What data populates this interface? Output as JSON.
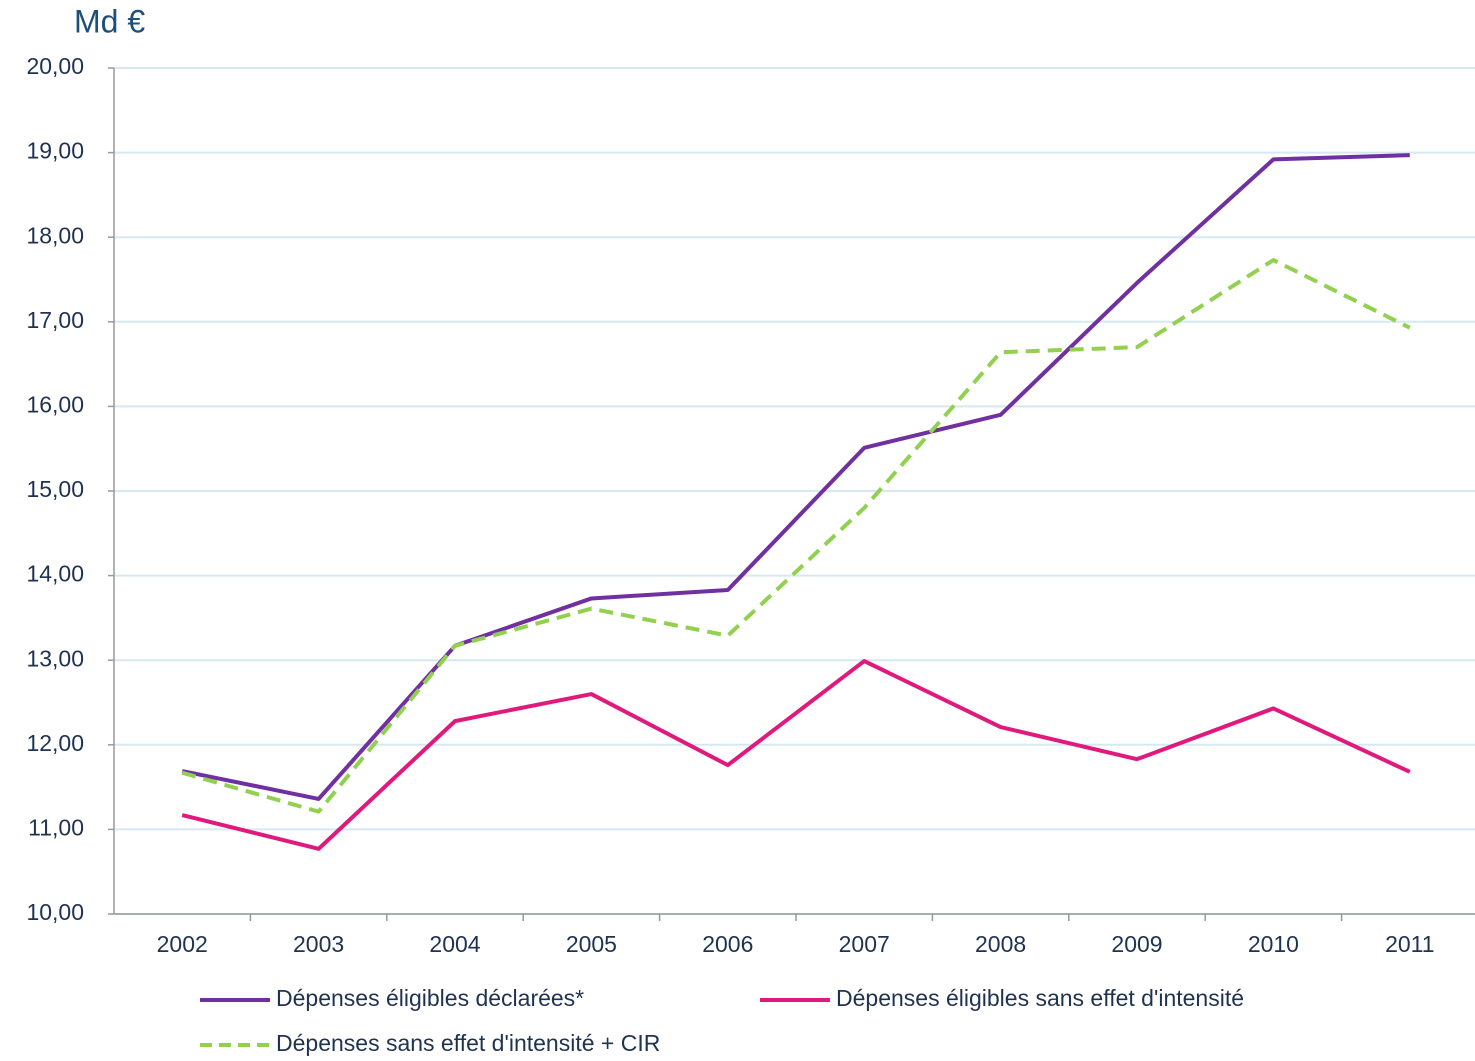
{
  "chart_data": {
    "type": "line",
    "y_label": "Md €",
    "categories": [
      "2002",
      "2003",
      "2004",
      "2005",
      "2006",
      "2007",
      "2008",
      "2009",
      "2010",
      "2011"
    ],
    "series": [
      {
        "name": "Dépenses éligibles déclarées*",
        "color": "#7030a0",
        "dashed": false,
        "values": [
          11.69,
          11.36,
          13.17,
          13.73,
          13.83,
          15.51,
          15.9,
          17.46,
          18.92,
          18.97
        ]
      },
      {
        "name": "Dépenses éligibles sans effet d'intensité",
        "color": "#e0197d",
        "dashed": false,
        "values": [
          11.17,
          10.77,
          12.28,
          12.6,
          11.76,
          12.99,
          12.21,
          11.83,
          12.43,
          11.68
        ]
      },
      {
        "name": "Dépenses sans effet d'intensité + CIR",
        "color": "#92d050",
        "dashed": true,
        "values": [
          11.67,
          11.21,
          13.17,
          13.61,
          13.29,
          14.8,
          16.64,
          16.7,
          17.73,
          16.93
        ]
      }
    ],
    "ylim": [
      10,
      20
    ],
    "yticks": [
      {
        "value": 10,
        "label": "10,00"
      },
      {
        "value": 11,
        "label": "11,00"
      },
      {
        "value": 12,
        "label": "12,00"
      },
      {
        "value": 13,
        "label": "13,00"
      },
      {
        "value": 14,
        "label": "14,00"
      },
      {
        "value": 15,
        "label": "15,00"
      },
      {
        "value": 16,
        "label": "16,00"
      },
      {
        "value": 17,
        "label": "17,00"
      },
      {
        "value": 18,
        "label": "18,00"
      },
      {
        "value": 19,
        "label": "19,00"
      },
      {
        "value": 20,
        "label": "20,00"
      }
    ],
    "grid": true
  }
}
